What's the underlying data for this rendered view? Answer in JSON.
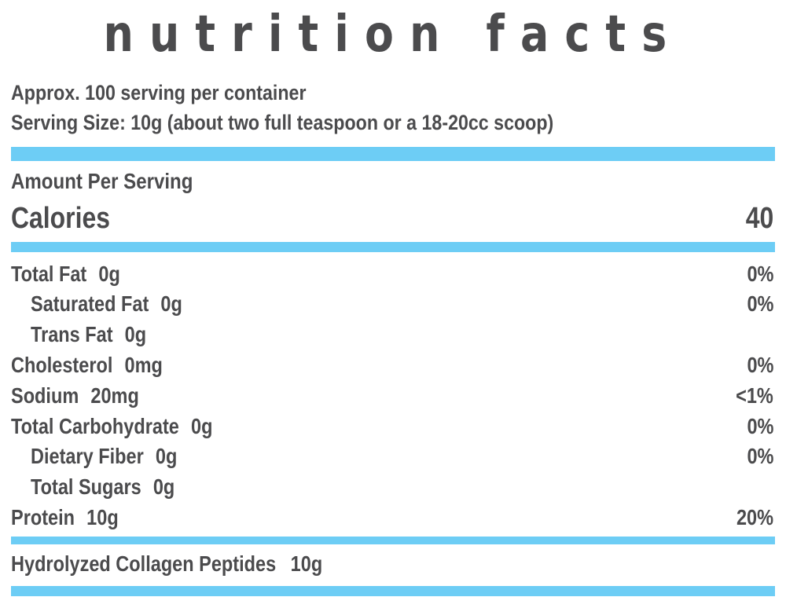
{
  "title": "nutrition facts",
  "servings_per_container": "Approx. 100 serving per container",
  "serving_size": "Serving Size: 10g (about two full teaspoon or a 18-20cc scoop)",
  "amount_per_serving": "Amount Per Serving",
  "calories": {
    "label": "Calories",
    "value": "40"
  },
  "nutrients": [
    {
      "name": "Total Fat",
      "amount": "0g",
      "dv": "0%"
    },
    {
      "name": "Saturated Fat",
      "amount": "0g",
      "dv": "0%"
    },
    {
      "name": "Trans Fat",
      "amount": "0g",
      "dv": ""
    },
    {
      "name": "Cholesterol",
      "amount": "0mg",
      "dv": "0%"
    },
    {
      "name": "Sodium",
      "amount": "20mg",
      "dv": "<1%"
    },
    {
      "name": "Total Carbohydrate",
      "amount": "0g",
      "dv": "0%"
    },
    {
      "name": "Dietary Fiber",
      "amount": "0g",
      "dv": "0%"
    },
    {
      "name": "Total Sugars",
      "amount": "0g",
      "dv": ""
    },
    {
      "name": "Protein",
      "amount": "10g",
      "dv": "20%"
    }
  ],
  "ingredient": {
    "name": "Hydrolyzed Collagen Peptides",
    "amount": "10g"
  },
  "colors": {
    "text": "#4b4b4d",
    "bar": "#6dcdf5",
    "background": "#ffffff"
  }
}
